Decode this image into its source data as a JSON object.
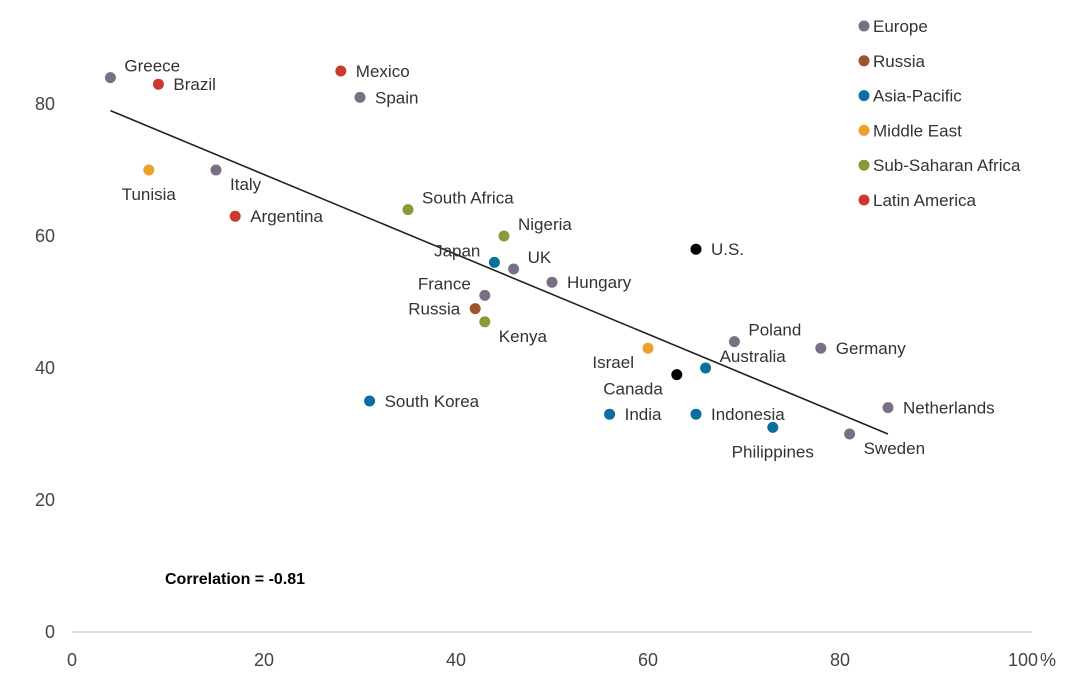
{
  "chart_data": {
    "type": "scatter",
    "title": "",
    "xlabel": "",
    "ylabel": "",
    "xlim": [
      0,
      100
    ],
    "ylim": [
      0,
      90
    ],
    "x_ticks": [
      0,
      20,
      40,
      60,
      80,
      100
    ],
    "x_tick_labels": [
      "0",
      "20",
      "40",
      "60",
      "80",
      "100"
    ],
    "x_unit_suffix": "%",
    "y_ticks": [
      0,
      20,
      40,
      60,
      80
    ],
    "y_tick_labels": [
      "0",
      "20",
      "40",
      "60",
      "80"
    ],
    "grid": false,
    "legend_position": "top-right",
    "groups": [
      {
        "name": "Europe",
        "color": "#7b6f86"
      },
      {
        "name": "Russia",
        "color": "#a0522d"
      },
      {
        "name": "Asia-Pacific",
        "color": "#0a6f9e"
      },
      {
        "name": "Middle East",
        "color": "#eaa228"
      },
      {
        "name": "Sub-Saharan Africa",
        "color": "#8a9a3a"
      },
      {
        "name": "Latin America",
        "color": "#cc3a2e"
      }
    ],
    "us_color": "#000000",
    "points": [
      {
        "label": "Greece",
        "group": "Europe",
        "x": 4,
        "y": 84,
        "anchor": "tr"
      },
      {
        "label": "Brazil",
        "group": "Latin America",
        "x": 9,
        "y": 83,
        "anchor": "r"
      },
      {
        "label": "Mexico",
        "group": "Latin America",
        "x": 28,
        "y": 85,
        "anchor": "r"
      },
      {
        "label": "Spain",
        "group": "Europe",
        "x": 30,
        "y": 81,
        "anchor": "r"
      },
      {
        "label": "Tunisia",
        "group": "Middle East",
        "x": 8,
        "y": 70,
        "anchor": "b"
      },
      {
        "label": "Italy",
        "group": "Europe",
        "x": 15,
        "y": 70,
        "anchor": "br"
      },
      {
        "label": "Argentina",
        "group": "Latin America",
        "x": 17,
        "y": 63,
        "anchor": "r"
      },
      {
        "label": "South Africa",
        "group": "Sub-Saharan Africa",
        "x": 35,
        "y": 64,
        "anchor": "tr"
      },
      {
        "label": "Nigeria",
        "group": "Sub-Saharan Africa",
        "x": 45,
        "y": 60,
        "anchor": "tr"
      },
      {
        "label": "Japan",
        "group": "Asia-Pacific",
        "x": 44,
        "y": 56,
        "anchor": "tl"
      },
      {
        "label": "UK",
        "group": "Europe",
        "x": 46,
        "y": 55,
        "anchor": "tr"
      },
      {
        "label": "U.S.",
        "group": "U.S.",
        "x": 65,
        "y": 58,
        "anchor": "r"
      },
      {
        "label": "Hungary",
        "group": "Europe",
        "x": 50,
        "y": 53,
        "anchor": "r"
      },
      {
        "label": "France",
        "group": "Europe",
        "x": 43,
        "y": 51,
        "anchor": "tl"
      },
      {
        "label": "Russia",
        "group": "Russia",
        "x": 42,
        "y": 49,
        "anchor": "l"
      },
      {
        "label": "Kenya",
        "group": "Sub-Saharan Africa",
        "x": 43,
        "y": 47,
        "anchor": "br"
      },
      {
        "label": "Poland",
        "group": "Europe",
        "x": 69,
        "y": 44,
        "anchor": "tr"
      },
      {
        "label": "Germany",
        "group": "Europe",
        "x": 78,
        "y": 43,
        "anchor": "r"
      },
      {
        "label": "Israel",
        "group": "Middle East",
        "x": 60,
        "y": 43,
        "anchor": "bl"
      },
      {
        "label": "Australia",
        "group": "Asia-Pacific",
        "x": 66,
        "y": 40,
        "anchor": "tr"
      },
      {
        "label": "Canada",
        "group": "U.S.",
        "x": 63,
        "y": 39,
        "anchor": "bl"
      },
      {
        "label": "South Korea",
        "group": "Asia-Pacific",
        "x": 31,
        "y": 35,
        "anchor": "r"
      },
      {
        "label": "India",
        "group": "Asia-Pacific",
        "x": 56,
        "y": 33,
        "anchor": "r"
      },
      {
        "label": "Indonesia",
        "group": "Asia-Pacific",
        "x": 65,
        "y": 33,
        "anchor": "r"
      },
      {
        "label": "Netherlands",
        "group": "Europe",
        "x": 85,
        "y": 34,
        "anchor": "r"
      },
      {
        "label": "Philippines",
        "group": "Asia-Pacific",
        "x": 73,
        "y": 31,
        "anchor": "b"
      },
      {
        "label": "Sweden",
        "group": "Europe",
        "x": 81,
        "y": 30,
        "anchor": "br"
      }
    ],
    "trendline": {
      "x": [
        4,
        85
      ],
      "y": [
        79,
        30
      ]
    },
    "annotation": "Correlation = -0.81"
  }
}
